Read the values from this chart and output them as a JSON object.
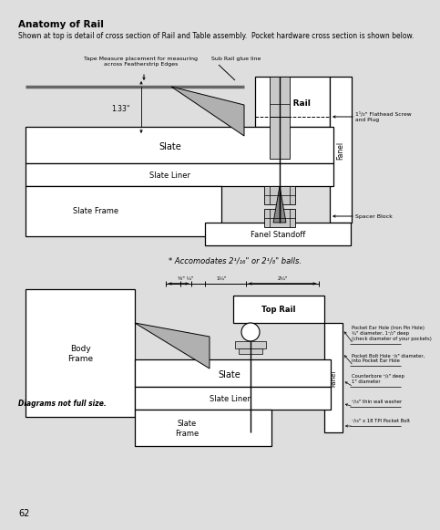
{
  "title": "Anatomy of Rail",
  "subtitle": "Shown at top is detail of cross section of Rail and Table assembly.  Pocket hardware cross section is shown below.",
  "bg_color": "#dedede",
  "page_number": "62",
  "top_diagram": {
    "tape_label": "Tape Measure placement for measuring\nacross Featherstrip Edges",
    "sub_rail_label": "Sub Rail glue line",
    "top_rail_label": "Top Rail",
    "flathead_label": "1¹/₂\" Flathead Screw\nand Plug",
    "slate_label": "Slate",
    "slate_liner_label": "Slate Liner",
    "panel_label": "Fanel",
    "slate_frame_label": "Slate Frame",
    "spacer_label": "Spacer Block",
    "fanel_standoff_label": "Fanel Standoff",
    "dim_label": "1.33\"",
    "accomodates": "* Accomodates 2¹/₁₆\" or 2¹/₈\" balls."
  },
  "bottom_diagram": {
    "body_frame_label": "Body\nFrame",
    "top_rail_label": "Top Rail",
    "slate_label": "Slate",
    "slate_liner_label": "Slate Liner",
    "slate_frame_label": "Slate\nFrame",
    "panel_label": "Fanel",
    "dim1": "⅜\" ¼\"",
    "dim2": "1¼\"",
    "dim3": "2¼\"",
    "pocket_ear_label": "Pocket Ear Hole (Iron Pin Hole)\n¾\" diameter, 1¹/₂\" deep\n(check diameter of your pockets)",
    "pocket_bolt_label": "Pocket Bolt Hole ⁷/₈\" diameter,\ninto Pocket Ear Hole",
    "counterbore_label": "Counterbore ³/₄\" deep\n1\" diameter",
    "thin_wall_label": "³/₁₆\" thin wall washer",
    "pocket_bolt2_label": "⁷/₁₆\" x 18 TPI Pocket Bolt",
    "diagrams_not_full": "Diagrams not full size."
  }
}
